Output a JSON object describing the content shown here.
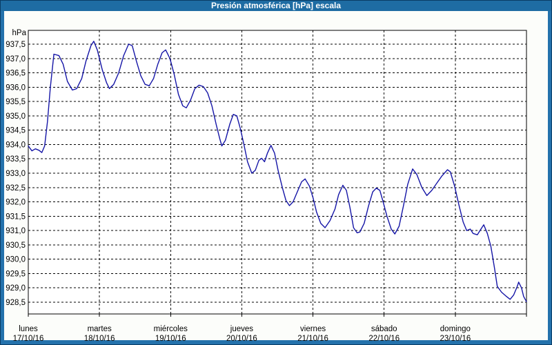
{
  "window": {
    "title": "Presión atmosférica [hPa] escala"
  },
  "colors": {
    "titlebar": "#1E6CA3",
    "frame": "#2472AC",
    "window_edge": "#0A3C64",
    "content_background": "#FCFDFA",
    "plot_background": "#FFFFFF",
    "grid": "#000000",
    "axis": "#000000",
    "line": "#1414A6",
    "text": "#000000",
    "title_text": "#FFFFFF"
  },
  "chart_data": {
    "type": "line",
    "title": "Presión atmosférica [hPa] escala",
    "y_unit_label": "hPa",
    "ylabel": "hPa",
    "xlabel": "",
    "ylim": [
      928.5,
      937.5
    ],
    "y_tick_step": 0.5,
    "y_ticks": [
      "937,5",
      "937,0",
      "936,5",
      "936,0",
      "935,5",
      "935,0",
      "934,5",
      "934,0",
      "933,5",
      "933,0",
      "932,5",
      "932,0",
      "931,5",
      "931,0",
      "930,5",
      "930,0",
      "929,5",
      "929,0",
      "928,5"
    ],
    "grid": "dashed",
    "legend_position": "none",
    "x_range_days": [
      0,
      7
    ],
    "days": [
      {
        "name": "lunes",
        "date": "17/10/16"
      },
      {
        "name": "martes",
        "date": "18/10/16"
      },
      {
        "name": "miércoles",
        "date": "19/10/16"
      },
      {
        "name": "jueves",
        "date": "20/10/16"
      },
      {
        "name": "viernes",
        "date": "21/10/16"
      },
      {
        "name": "sábado",
        "date": "22/10/16"
      },
      {
        "name": "domingo",
        "date": "23/10/16"
      }
    ],
    "series": [
      {
        "name": "Presión atmosférica",
        "color": "#1414A6",
        "points": [
          [
            0.0,
            933.95
          ],
          [
            0.05,
            933.78
          ],
          [
            0.1,
            933.85
          ],
          [
            0.15,
            933.8
          ],
          [
            0.19,
            933.72
          ],
          [
            0.23,
            933.95
          ],
          [
            0.27,
            934.8
          ],
          [
            0.31,
            936.0
          ],
          [
            0.36,
            937.15
          ],
          [
            0.43,
            937.1
          ],
          [
            0.49,
            936.8
          ],
          [
            0.55,
            936.2
          ],
          [
            0.62,
            935.9
          ],
          [
            0.68,
            935.95
          ],
          [
            0.75,
            936.3
          ],
          [
            0.81,
            936.9
          ],
          [
            0.88,
            937.45
          ],
          [
            0.92,
            937.6
          ],
          [
            0.97,
            937.3
          ],
          [
            1.04,
            936.6
          ],
          [
            1.1,
            936.15
          ],
          [
            1.14,
            935.95
          ],
          [
            1.2,
            936.1
          ],
          [
            1.27,
            936.5
          ],
          [
            1.34,
            937.1
          ],
          [
            1.41,
            937.5
          ],
          [
            1.46,
            937.45
          ],
          [
            1.52,
            936.9
          ],
          [
            1.58,
            936.4
          ],
          [
            1.64,
            936.1
          ],
          [
            1.7,
            936.05
          ],
          [
            1.76,
            936.3
          ],
          [
            1.82,
            936.8
          ],
          [
            1.88,
            937.2
          ],
          [
            1.93,
            937.3
          ],
          [
            1.99,
            937.0
          ],
          [
            2.05,
            936.45
          ],
          [
            2.11,
            935.75
          ],
          [
            2.17,
            935.35
          ],
          [
            2.22,
            935.28
          ],
          [
            2.28,
            935.55
          ],
          [
            2.34,
            935.95
          ],
          [
            2.4,
            936.07
          ],
          [
            2.46,
            936.02
          ],
          [
            2.52,
            935.8
          ],
          [
            2.58,
            935.35
          ],
          [
            2.64,
            934.7
          ],
          [
            2.69,
            934.2
          ],
          [
            2.72,
            933.95
          ],
          [
            2.77,
            934.15
          ],
          [
            2.83,
            934.7
          ],
          [
            2.88,
            935.05
          ],
          [
            2.93,
            935.0
          ],
          [
            2.98,
            934.55
          ],
          [
            3.03,
            934.0
          ],
          [
            3.08,
            933.4
          ],
          [
            3.14,
            933.0
          ],
          [
            3.19,
            933.1
          ],
          [
            3.24,
            933.45
          ],
          [
            3.28,
            933.52
          ],
          [
            3.32,
            933.4
          ],
          [
            3.36,
            933.7
          ],
          [
            3.41,
            933.97
          ],
          [
            3.46,
            933.7
          ],
          [
            3.51,
            933.1
          ],
          [
            3.57,
            932.5
          ],
          [
            3.62,
            932.05
          ],
          [
            3.67,
            931.87
          ],
          [
            3.72,
            932.0
          ],
          [
            3.78,
            932.35
          ],
          [
            3.84,
            932.7
          ],
          [
            3.89,
            932.8
          ],
          [
            3.95,
            932.55
          ],
          [
            4.0,
            932.15
          ],
          [
            4.05,
            931.65
          ],
          [
            4.11,
            931.25
          ],
          [
            4.17,
            931.1
          ],
          [
            4.24,
            931.35
          ],
          [
            4.31,
            931.75
          ],
          [
            4.36,
            932.25
          ],
          [
            4.42,
            932.58
          ],
          [
            4.47,
            932.4
          ],
          [
            4.52,
            931.8
          ],
          [
            4.57,
            931.1
          ],
          [
            4.62,
            930.92
          ],
          [
            4.66,
            930.95
          ],
          [
            4.72,
            931.25
          ],
          [
            4.78,
            931.85
          ],
          [
            4.84,
            932.35
          ],
          [
            4.89,
            932.48
          ],
          [
            4.94,
            932.4
          ],
          [
            4.98,
            932.05
          ],
          [
            5.04,
            931.5
          ],
          [
            5.1,
            931.05
          ],
          [
            5.15,
            930.88
          ],
          [
            5.21,
            931.15
          ],
          [
            5.27,
            931.85
          ],
          [
            5.33,
            932.6
          ],
          [
            5.4,
            933.15
          ],
          [
            5.46,
            932.95
          ],
          [
            5.53,
            932.5
          ],
          [
            5.6,
            932.22
          ],
          [
            5.67,
            932.4
          ],
          [
            5.74,
            932.65
          ],
          [
            5.81,
            932.9
          ],
          [
            5.89,
            933.12
          ],
          [
            5.93,
            933.05
          ],
          [
            5.99,
            932.55
          ],
          [
            6.05,
            931.9
          ],
          [
            6.11,
            931.3
          ],
          [
            6.16,
            931.0
          ],
          [
            6.21,
            931.05
          ],
          [
            6.25,
            930.9
          ],
          [
            6.31,
            930.85
          ],
          [
            6.36,
            931.05
          ],
          [
            6.4,
            931.2
          ],
          [
            6.45,
            930.9
          ],
          [
            6.5,
            930.45
          ],
          [
            6.55,
            929.7
          ],
          [
            6.59,
            929.05
          ],
          [
            6.65,
            928.85
          ],
          [
            6.71,
            928.72
          ],
          [
            6.77,
            928.6
          ],
          [
            6.82,
            928.75
          ],
          [
            6.87,
            929.05
          ],
          [
            6.89,
            929.2
          ],
          [
            6.93,
            929.0
          ],
          [
            6.96,
            928.7
          ],
          [
            7.0,
            928.52
          ]
        ]
      }
    ]
  }
}
